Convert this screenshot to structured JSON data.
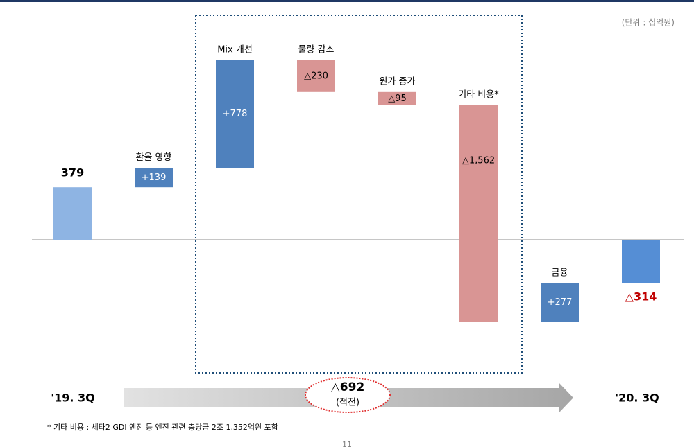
{
  "chart_data": {
    "type": "waterfall",
    "unit_note": "(단위 : 십억원)",
    "categories": [
      "'19. 3Q",
      "환율 영향",
      "Mix 개선",
      "물량 감소",
      "원가 증가",
      "기타 비용*",
      "금융",
      "'20. 3Q"
    ],
    "values": [
      379,
      139,
      778,
      -230,
      -95,
      -1562,
      277,
      -314
    ],
    "value_labels": [
      "379",
      "+139",
      "+778",
      "△230",
      "△95",
      "△1,562",
      "+277",
      "△314"
    ],
    "measure": [
      "absolute",
      "relative",
      "relative",
      "relative",
      "relative",
      "relative",
      "relative",
      "absolute"
    ],
    "colors": [
      "#8eb4e3",
      "#4f81bd",
      "#4f81bd",
      "#d99594",
      "#d99594",
      "#d99594",
      "#4f81bd",
      "#558ed5"
    ],
    "annotation": {
      "value": "△692",
      "note": "(적전)"
    },
    "footnote": "* 기타 비용 : 세타2 GDI 엔진 등 엔진 관련 충당금 2조 1,352억원 포함",
    "page_number": "11"
  }
}
